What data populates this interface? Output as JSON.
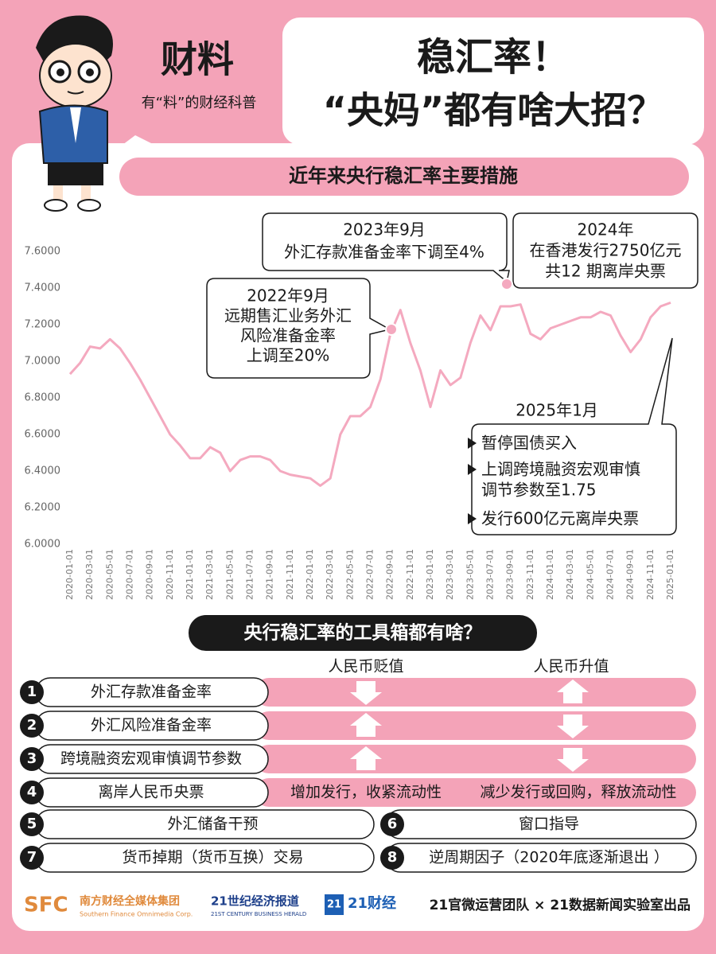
{
  "header": {
    "logo": "财料",
    "slogan": "有“料”的财经科普",
    "title_lines": [
      "稳汇率！",
      "“央妈”都有啥大招？"
    ],
    "subtitle": "近年来央行稳汇率主要措施"
  },
  "chart_data": {
    "type": "line",
    "categories": [
      "2020-01-01",
      null,
      "2020-03-01",
      null,
      "2020-05-01",
      null,
      "2020-07-01",
      null,
      "2020-09-01",
      null,
      "2020-11-01",
      null,
      "2021-01-01",
      null,
      "2021-03-01",
      null,
      "2021-05-01",
      null,
      "2021-07-01",
      null,
      "2021-09-01",
      null,
      "2021-11-01",
      null,
      "2022-01-01",
      null,
      "2022-03-01",
      null,
      "2022-05-01",
      null,
      "2022-07-01",
      null,
      "2022-09-01",
      null,
      "2022-11-01",
      null,
      "2023-01-01",
      null,
      "2023-03-01",
      null,
      "2023-05-01",
      null,
      "2023-07-01",
      null,
      "2023-09-01",
      null,
      "2023-11-01",
      null,
      "2024-01-01",
      null,
      "2024-03-01",
      null,
      "2024-05-01",
      null,
      "2024-07-01",
      null,
      "2024-09-01",
      null,
      "2024-11-01",
      null,
      "2025-01-01"
    ],
    "series": [
      {
        "color": "#f4a9bf",
        "values": [
          6.93,
          6.99,
          7.08,
          7.07,
          7.12,
          7.07,
          6.99,
          6.9,
          6.8,
          6.7,
          6.6,
          6.54,
          6.47,
          6.47,
          6.53,
          6.5,
          6.4,
          6.46,
          6.48,
          6.48,
          6.46,
          6.4,
          6.38,
          6.37,
          6.36,
          6.32,
          6.36,
          6.6,
          6.7,
          6.7,
          6.75,
          6.9,
          7.15,
          7.28,
          7.1,
          6.95,
          6.75,
          6.95,
          6.87,
          6.91,
          7.1,
          7.25,
          7.17,
          7.3,
          7.3,
          7.31,
          7.15,
          7.12,
          7.18,
          7.2,
          7.22,
          7.24,
          7.24,
          7.27,
          7.25,
          7.14,
          7.05,
          7.12,
          7.24,
          7.3,
          7.32
        ]
      }
    ],
    "ylim": [
      6.0,
      7.6
    ],
    "yticks": [
      {
        "value": 6.0,
        "label": "6.0000"
      },
      {
        "value": 6.2,
        "label": "6.2000"
      },
      {
        "value": 6.4,
        "label": "6.4000"
      },
      {
        "value": 6.6,
        "label": "6.6000"
      },
      {
        "value": 6.8,
        "label": "6.8000"
      },
      {
        "value": 7.0,
        "label": "7.0000"
      },
      {
        "value": 7.2,
        "label": "7.2000"
      },
      {
        "value": 7.4,
        "label": "7.4000"
      },
      {
        "value": 7.6,
        "label": "7.6000"
      }
    ],
    "grid": false,
    "annotations": [
      {
        "lines": [
          "2022年9月",
          "远期售汇业务外汇",
          "风险准备金率",
          "上调至20%"
        ]
      },
      {
        "lines": [
          "2023年9月",
          "外汇存款准备金率下调至4%"
        ]
      },
      {
        "lines": [
          "2024年",
          "在香港发行2750亿元",
          "共12 期离岸央票"
        ]
      },
      {
        "lines": [
          "2025年1月",
          "暂停国债买入",
          "上调跨境融资宏观审慎",
          "调节参数至1.75",
          "发行600亿元离岸央票"
        ]
      }
    ]
  },
  "toolbox": {
    "title": "央行稳汇率的工具箱都有啥？",
    "columns": [
      "人民币贬值",
      "人民币升值"
    ],
    "rows": [
      {
        "number": 1,
        "name": "外汇存款准备金率"
      },
      {
        "number": 2,
        "name": "外汇风险准备金率"
      },
      {
        "number": 3,
        "name": "跨境融资宏观审慎调节参数"
      },
      {
        "number": 4,
        "name": "离岸人民币央票",
        "effects": [
          "增加发行，收紧流动性",
          "减少发行或回购，释放流动性"
        ]
      }
    ],
    "others": [
      {
        "number": 5,
        "name": "外汇储备干预"
      },
      {
        "number": 6,
        "name": "窗口指导"
      },
      {
        "number": 7,
        "name": "货币掉期（货币互换）交易"
      },
      {
        "number": 8,
        "name": "逆周期因子（2020年底逐渐退出 ）"
      }
    ]
  },
  "footer": {
    "logos": [
      "SFC",
      "南方财经全媒体集团",
      "Southern Finance Omnimedia Corp.",
      "21世纪经济报道",
      "21ST CENTURY BUSINESS HERALD",
      "21",
      "21财经"
    ],
    "credit": "21官微运营团队 × 21数据新闻实验室出品"
  }
}
